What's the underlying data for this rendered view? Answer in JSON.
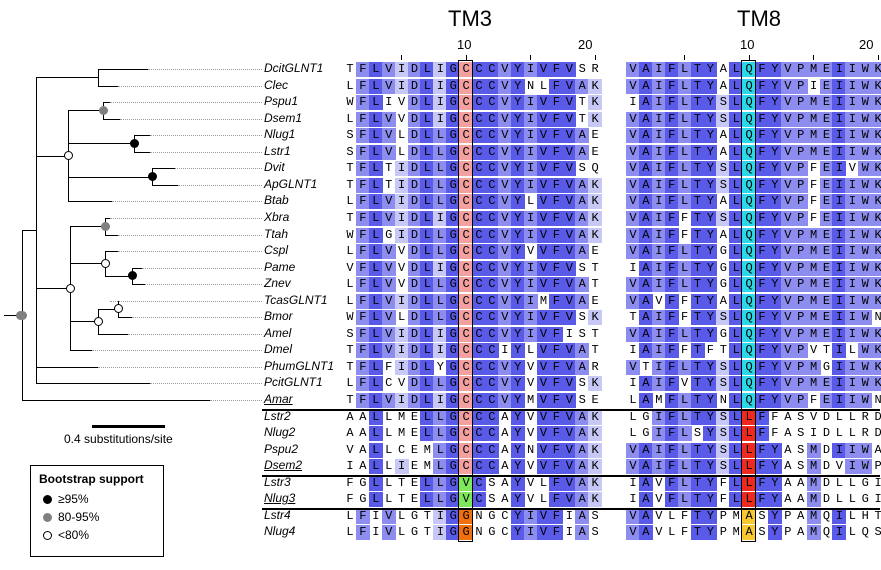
{
  "blocks": [
    {
      "title": "TM3",
      "tick_labels": [
        "10",
        "20"
      ]
    },
    {
      "title": "TM8",
      "tick_labels": [
        "10",
        "20"
      ]
    }
  ],
  "scale_label": "0.4 substitutions/site",
  "legend": {
    "title": "Bootstrap support",
    "items": [
      {
        "label": "≥95%",
        "level": "high"
      },
      {
        "label": "80-95%",
        "level": "mid"
      },
      {
        "label": "<80%",
        "level": "low"
      }
    ]
  },
  "colors": {
    "dark": "#5a5ae8",
    "mid": "#8d8df0",
    "light": "#c8c8f6",
    "tm3_highlight": "#f4a0a0",
    "tm8_highlight": "#2ad8e8",
    "green": "#7ee85a",
    "red": "#ee2a20",
    "orange": "#f07010",
    "yellow": "#f8c830"
  },
  "groups": [
    {
      "name": "group-1",
      "taxa": [
        {
          "name": "DcitGLNT1",
          "seq1": "TFLVIDLIGCCCVYIVFVSR",
          "seq2": "VAIFLTYALQFYVPMEIIWK"
        },
        {
          "name": "Clec",
          "seq1": "LFLVIDLIGCCCVYNLFVAK",
          "seq2": "VAIFLTYALQFYVPIEIIWK"
        },
        {
          "name": "Pspu1",
          "seq1": "WFLIVDLIGCCCVYIVFVTK",
          "seq2": "IAIFLTYSLQFYVPMEIIWK"
        },
        {
          "name": "Dsem1",
          "seq1": "LFLVVDLIGCCCVYIVFVTK",
          "seq2": "VAIFLTYSLQFYVPMEIIWK"
        },
        {
          "name": "Nlug1",
          "seq1": "SFLVLDLLGCCCVYIVFVAE",
          "seq2": "VAIFLTYALQFYVPMEIIWK"
        },
        {
          "name": "Lstr1",
          "seq1": "SFLVLDLLGCCCVYIVFVAE",
          "seq2": "VAIFLTYALQFYVPMEIIWK"
        },
        {
          "name": "Dvit",
          "seq1": "TFLTIDLLGCCCVYIVFVSQ",
          "seq2": "VAIFLTYSLQFYVPFEIVWK"
        },
        {
          "name": "ApGLNT1",
          "seq1": "TFLTIDLLGCCCVYIVFVAK",
          "seq2": "VAIFLTYSLQFYVPFEIIWK"
        },
        {
          "name": "Btab",
          "seq1": "LFLVIDLLGCCCVYLVFVAK",
          "seq2": "VAIFLTYALQFYVPFEIIWK"
        },
        {
          "name": "Xbra",
          "seq1": "TFLVIDLIGCCCVYIVFVAK",
          "seq2": "VAIFFTYSLQFYVPFEIIWK"
        },
        {
          "name": "Ttah",
          "seq1": "WFLGIDLLGCCCVYIVFVAK",
          "seq2": "VAIFFTYALQFYVPMEIIWK"
        },
        {
          "name": "Cspl",
          "seq1": "LFLVVDLLGCCCVYVVFVAE",
          "seq2": "VAIFLTYGLQFYVPMEIIWK"
        },
        {
          "name": "Pame",
          "seq1": "VFLVVDLIGCCCVYIVFVST",
          "seq2": "IAIFLTYGLQFYVPMEIIWK"
        },
        {
          "name": "Znev",
          "seq1": "LFLVVDLLGCCCVYIVFVAT",
          "seq2": "VAIFLTYGLQFYVPMEIIWK"
        },
        {
          "name": "TcasGLNT1",
          "seq1": "LFLVIDLLGCCCVYIMFVAE",
          "seq2": "VAVFFTYALQFYVPMEIIWK"
        },
        {
          "name": "Bmor",
          "seq1": "WFLVLDLLGCCCVYIVFVSK",
          "seq2": "TAIFFTYSLQFYVPMEIIWN"
        },
        {
          "name": "Amel",
          "seq1": "SFLVIDLIGCCCVYIVFIST",
          "seq2": "VAIFLTYGLQFYVPMEIIWK"
        },
        {
          "name": "Dmel",
          "seq1": "TFLVIDLIGCCCIYLVFVAT",
          "seq2": "IAIFFTFTLQFYVPVTILWK"
        },
        {
          "name": "PhumGLNT1",
          "seq1": "TFLFIDLYGCCCVYVVFVAR",
          "seq2": "VTIFLTYSLQFYVPMGIIWK"
        },
        {
          "name": "PcitGLNT1",
          "seq1": "LFLCVDLLGCCCVYVVFVSK",
          "seq2": "IAIFVTYSLQFYVPMEIIWK"
        },
        {
          "name": "Amar",
          "seq1": "TFLVIDLIGCCCVYMVFVSE",
          "seq2": "LAMFLTYNLQFYVPFEIIWN",
          "underline": true
        }
      ]
    },
    {
      "name": "group-2",
      "taxa": [
        {
          "name": "Lstr2",
          "seq1": "AALLMELLGCCCAYVVFVAK",
          "seq2": "LGIFLTYSLLFFASVDLLRD"
        },
        {
          "name": "Nlug2",
          "seq1": "AALLMELLGCCCAYVVFVAK",
          "seq2": "LGIFLSYSLLFFASIDLLRD"
        },
        {
          "name": "Pspu2",
          "seq1": "VALLCEMLGCCCAYNVFVAK",
          "seq2": "VAIFLTYSLLFYASMDIIWA"
        },
        {
          "name": "Dsem2",
          "seq1": "IALLIEMLGCCCAYVVFVAK",
          "seq2": "VAIFLTYSLLFYASMDVIWP",
          "underline": true
        }
      ]
    },
    {
      "name": "group-3",
      "taxa": [
        {
          "name": "Lstr3",
          "seq1": "FGLLTELLGVCSAYVLFVAK",
          "seq2": "IAVFLTYFLLFYAAMDLLGI"
        },
        {
          "name": "Nlug3",
          "seq1": "FGLLTELLGVCSAYVLFVAK",
          "seq2": "IAVFLTYFLLFYAAMDLLGI",
          "underline": true
        }
      ]
    },
    {
      "name": "group-4",
      "taxa": [
        {
          "name": "Lstr4",
          "seq1": "LFIVLGTIGGNGCYIVFIAS",
          "seq2": "VAVLFTYPMASYPAMQILHT"
        },
        {
          "name": "Nlug4",
          "seq1": "LFIVLGTIGGNGCYIVFIAS",
          "seq2": "VAVLFTYPMASYPAMQILQS"
        }
      ]
    }
  ]
}
